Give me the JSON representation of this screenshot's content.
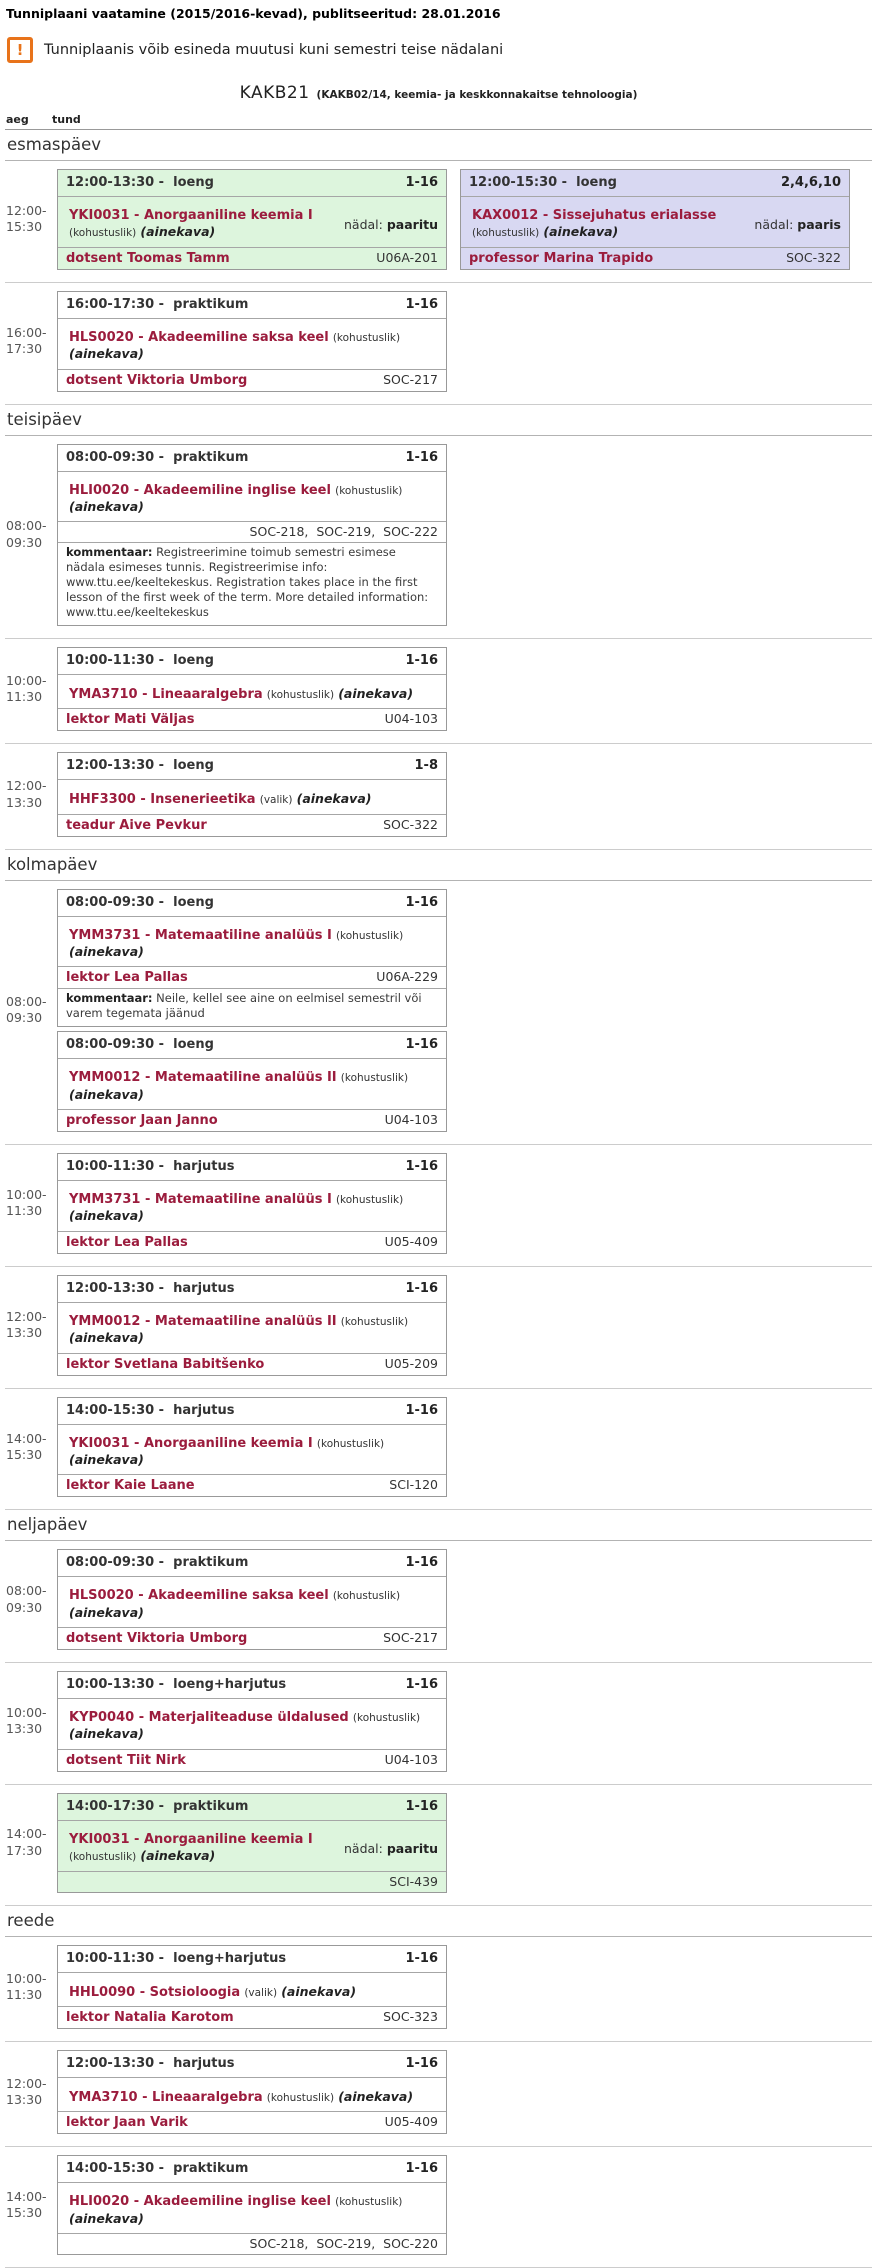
{
  "page": {
    "title": "Tunniplaani vaatamine (2015/2016-kevad), publitseeritud: 28.01.2016",
    "notice": "Tunniplaanis võib esineda muutusi kuni semestri teise nädalani",
    "warning_glyph": "!",
    "group_code": "KAKB21",
    "group_subtitle": "(KAKB02/14, keemia- ja keskkonnakaitse tehnoloogia)",
    "col_aeg": "aeg",
    "col_tund": "tund"
  },
  "labels": {
    "header_sep": " -  ",
    "nadal": "nädal:",
    "kommentaar": "kommentaar:",
    "ainekava": "(ainekava)"
  },
  "colors": {
    "accent_maroon": "#9b1c3d",
    "green_card_bg": "#ddf5dd",
    "purple_card_bg": "#d8d8f2",
    "warning_orange": "#e8731a"
  },
  "days": [
    {
      "name": "esmaspäev",
      "rows": [
        {
          "time1": "12:00-",
          "time2": "15:30",
          "cards": [
            {
              "variant": "green",
              "time": "12:00-13:30",
              "activity": "loeng",
              "weeks": "1-16",
              "course": "YKI0031 - Anorgaaniline keemia I",
              "req": "(kohustuslik)",
              "week_value": "paaritu",
              "teacher": "dotsent Toomas Tamm",
              "rooms": "U06A-201"
            },
            {
              "variant": "purple",
              "time": "12:00-15:30",
              "activity": "loeng",
              "weeks": "2,4,6,10",
              "course": "KAX0012 - Sissejuhatus erialasse",
              "req": "(kohustuslik)",
              "week_value": "paaris",
              "teacher": "professor Marina Trapido",
              "rooms": "SOC-322"
            }
          ]
        },
        {
          "time1": "16:00-",
          "time2": "17:30",
          "cards": [
            {
              "variant": "white",
              "time": "16:00-17:30",
              "activity": "praktikum",
              "weeks": "1-16",
              "course": "HLS0020 - Akadeemiline saksa keel",
              "req": "(kohustuslik)",
              "teacher": "dotsent Viktoria Umborg",
              "rooms": "SOC-217"
            }
          ]
        }
      ]
    },
    {
      "name": "teisipäev",
      "rows": [
        {
          "time1": "08:00-",
          "time2": "09:30",
          "cards": [
            {
              "variant": "white",
              "time": "08:00-09:30",
              "activity": "praktikum",
              "weeks": "1-16",
              "course": "HLI0020 - Akadeemiline inglise keel",
              "req": "(kohustuslik)",
              "rooms_row": "SOC-218,  SOC-219,  SOC-222",
              "comment": "Registreerimine toimub semestri esimese nädala esimeses tunnis. Registreerimise info: www.ttu.ee/keeltekeskus. Registration takes place in the first lesson of the first week of the term. More detailed information: www.ttu.ee/keeltekeskus"
            }
          ]
        },
        {
          "time1": "10:00-",
          "time2": "11:30",
          "cards": [
            {
              "variant": "white",
              "time": "10:00-11:30",
              "activity": "loeng",
              "weeks": "1-16",
              "course": "YMA3710 - Lineaaralgebra",
              "req": "(kohustuslik)",
              "teacher": "lektor Mati Väljas",
              "rooms": "U04-103"
            }
          ]
        },
        {
          "time1": "12:00-",
          "time2": "13:30",
          "cards": [
            {
              "variant": "white",
              "time": "12:00-13:30",
              "activity": "loeng",
              "weeks": "1-8",
              "course": "HHF3300 - Insenerieetika",
              "req": "(valik)",
              "teacher": "teadur Aive Pevkur",
              "rooms": "SOC-322"
            }
          ]
        }
      ]
    },
    {
      "name": "kolmapäev",
      "rows": [
        {
          "time1": "08:00-",
          "time2": "09:30",
          "stack": true,
          "cards": [
            {
              "variant": "white",
              "time": "08:00-09:30",
              "activity": "loeng",
              "weeks": "1-16",
              "course": "YMM3731 - Matemaatiline analüüs I",
              "req": "(kohustuslik)",
              "teacher": "lektor Lea Pallas",
              "rooms": "U06A-229",
              "comment": "Neile, kellel see aine on eelmisel semestril või varem tegemata jäänud"
            },
            {
              "variant": "white",
              "time": "08:00-09:30",
              "activity": "loeng",
              "weeks": "1-16",
              "course": "YMM0012 - Matemaatiline analüüs II",
              "req": "(kohustuslik)",
              "teacher": "professor Jaan Janno",
              "rooms": "U04-103"
            }
          ]
        },
        {
          "time1": "10:00-",
          "time2": "11:30",
          "cards": [
            {
              "variant": "white",
              "time": "10:00-11:30",
              "activity": "harjutus",
              "weeks": "1-16",
              "course": "YMM3731 - Matemaatiline analüüs I",
              "req": "(kohustuslik)",
              "teacher": "lektor Lea Pallas",
              "rooms": "U05-409"
            }
          ]
        },
        {
          "time1": "12:00-",
          "time2": "13:30",
          "cards": [
            {
              "variant": "white",
              "time": "12:00-13:30",
              "activity": "harjutus",
              "weeks": "1-16",
              "course": "YMM0012 - Matemaatiline analüüs II",
              "req": "(kohustuslik)",
              "teacher": "lektor Svetlana Babitšenko",
              "rooms": "U05-209"
            }
          ]
        },
        {
          "time1": "14:00-",
          "time2": "15:30",
          "cards": [
            {
              "variant": "white",
              "time": "14:00-15:30",
              "activity": "harjutus",
              "weeks": "1-16",
              "course": "YKI0031 - Anorgaaniline keemia I",
              "req": "(kohustuslik)",
              "teacher": "lektor Kaie Laane",
              "rooms": "SCI-120"
            }
          ]
        }
      ]
    },
    {
      "name": "neljapäev",
      "rows": [
        {
          "time1": "08:00-",
          "time2": "09:30",
          "cards": [
            {
              "variant": "white",
              "time": "08:00-09:30",
              "activity": "praktikum",
              "weeks": "1-16",
              "course": "HLS0020 - Akadeemiline saksa keel",
              "req": "(kohustuslik)",
              "teacher": "dotsent Viktoria Umborg",
              "rooms": "SOC-217"
            }
          ]
        },
        {
          "time1": "10:00-",
          "time2": "13:30",
          "cards": [
            {
              "variant": "white",
              "time": "10:00-13:30",
              "activity": "loeng+harjutus",
              "weeks": "1-16",
              "course": "KYP0040 - Materjaliteaduse üldalused",
              "req": "(kohustuslik)",
              "teacher": "dotsent Tiit Nirk",
              "rooms": "U04-103"
            }
          ]
        },
        {
          "time1": "14:00-",
          "time2": "17:30",
          "cards": [
            {
              "variant": "green",
              "time": "14:00-17:30",
              "activity": "praktikum",
              "weeks": "1-16",
              "course": "YKI0031 - Anorgaaniline keemia I",
              "req": "(kohustuslik)",
              "week_value": "paaritu",
              "rooms": "SCI-439"
            }
          ]
        }
      ]
    },
    {
      "name": "reede",
      "rows": [
        {
          "time1": "10:00-",
          "time2": "11:30",
          "cards": [
            {
              "variant": "white",
              "time": "10:00-11:30",
              "activity": "loeng+harjutus",
              "weeks": "1-16",
              "course": "HHL0090 - Sotsioloogia",
              "req": "(valik)",
              "teacher": "lektor Natalia Karotom",
              "rooms": "SOC-323"
            }
          ]
        },
        {
          "time1": "12:00-",
          "time2": "13:30",
          "cards": [
            {
              "variant": "white",
              "time": "12:00-13:30",
              "activity": "harjutus",
              "weeks": "1-16",
              "course": "YMA3710 - Lineaaralgebra",
              "req": "(kohustuslik)",
              "teacher": "lektor Jaan Varik",
              "rooms": "U05-409"
            }
          ]
        },
        {
          "time1": "14:00-",
          "time2": "15:30",
          "cards": [
            {
              "variant": "white",
              "time": "14:00-15:30",
              "activity": "praktikum",
              "weeks": "1-16",
              "course": "HLI0020 - Akadeemiline inglise keel",
              "req": "(kohustuslik)",
              "rooms_row": "SOC-218,  SOC-219,  SOC-220"
            }
          ]
        }
      ]
    }
  ]
}
